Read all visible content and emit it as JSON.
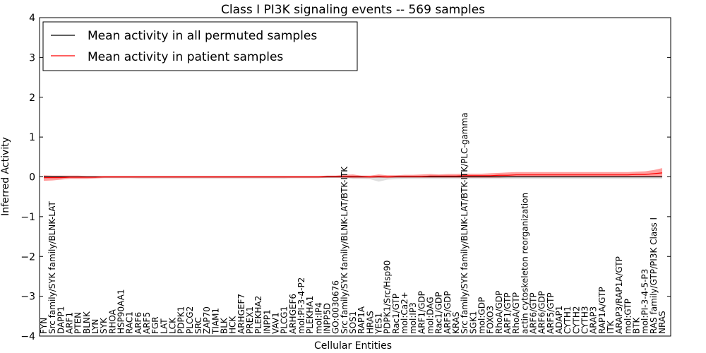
{
  "chart_data": {
    "type": "line",
    "title": "Class I PI3K signaling events -- 569 samples",
    "xlabel": "Cellular Entities",
    "ylabel": "Inferred Activity",
    "ylim": [
      -4,
      4
    ],
    "yticks": [
      -4,
      -3,
      -2,
      -1,
      0,
      1,
      2,
      3,
      4
    ],
    "ytick_labels": [
      "−4",
      "−3",
      "−2",
      "−1",
      "0",
      "1",
      "2",
      "3",
      "4"
    ],
    "grid": false,
    "legend_position": "top-left",
    "categories": [
      "FYN",
      "Src family/SYK family/BLNK-LAT",
      "DAPP1",
      "ARF1",
      "PTEN",
      "BLNK",
      "LYN",
      "SYK",
      "RHOA",
      "HSP90AA1",
      "RAC1",
      "ARF6",
      "ARF5",
      "FGR",
      "LAT",
      "LCK",
      "PDPK1",
      "PLCG2",
      "SRC",
      "ZAP70",
      "TIAM1",
      "BLK",
      "HCK",
      "ARHGEF7",
      "PREX1",
      "PLEKHA2",
      "INPP1",
      "VAV1",
      "PLCG1",
      "ARHGEF6",
      "mol:PI-3-4-P2",
      "PLEKHA1",
      "mol:IP4",
      "INPP5D",
      "GO:0030676",
      "Src family/SYK family/BLNK-LAT/BTK-ITK",
      "SOS1",
      "RAP1A",
      "HRAS",
      "YES1",
      "PDPK1/Src/Hsp90",
      "Rac1/GTP",
      "mol:Ca2+",
      "mol:IP3",
      "ARF1/GDP",
      "mol:DAG",
      "Rac1/GDP",
      "ARF5/GDP",
      "KRAS",
      "Src family/SYK family/BLNK-LAT/BTK-ITK/PLC-gamma",
      "SGK1",
      "mol:GDP",
      "FOXO3",
      "RhoA/GDP",
      "ARF1/GTP",
      "RhoA/GTP",
      "actin cytoskeleton reorganization",
      "ARF6/GTP",
      "ARF6/GDP",
      "ARF5/GTP",
      "ADAP1",
      "CYTH1",
      "CYTH2",
      "CYTH3",
      "ARAP3",
      "RAP1A/GTP",
      "ITK",
      "ARAP3/RAP1A/GTP",
      "mol:GTP",
      "BTK",
      "mol:PI-3-4-5-P3",
      "RAS family/GTP/PI3K Class I",
      "NRAS"
    ],
    "series": [
      {
        "name": "Mean activity in all permuted samples",
        "color": "#000000",
        "values": [
          0,
          0,
          0,
          0,
          0,
          0,
          0,
          0,
          0,
          0,
          0,
          0,
          0,
          0,
          0,
          0,
          0,
          0,
          0,
          0,
          0,
          0,
          0,
          0,
          0,
          0,
          0,
          0,
          0,
          0,
          0,
          0,
          0,
          0,
          0,
          0,
          0,
          0,
          0,
          0,
          0,
          0,
          0,
          0,
          0,
          0,
          0,
          0,
          0,
          0,
          0,
          0,
          0,
          0,
          0,
          0,
          0,
          0,
          0,
          0,
          0,
          0,
          0,
          0,
          0,
          0,
          0,
          0,
          0,
          0,
          0,
          0,
          0
        ],
        "band_upper": [
          0.02,
          0.02,
          0.02,
          0.02,
          0.02,
          0.02,
          0.02,
          0.02,
          0.02,
          0.02,
          0.02,
          0.02,
          0.02,
          0.02,
          0.02,
          0.02,
          0.02,
          0.02,
          0.02,
          0.02,
          0.02,
          0.02,
          0.02,
          0.02,
          0.02,
          0.02,
          0.02,
          0.02,
          0.02,
          0.02,
          0.02,
          0.02,
          0.02,
          0.02,
          0.02,
          0.03,
          0.02,
          0.02,
          0.02,
          0.02,
          0.02,
          0.02,
          0.02,
          0.02,
          0.02,
          0.02,
          0.02,
          0.02,
          0.02,
          0.02,
          0.02,
          0.02,
          0.02,
          0.02,
          0.02,
          0.02,
          0.02,
          0.02,
          0.02,
          0.02,
          0.02,
          0.02,
          0.02,
          0.02,
          0.02,
          0.02,
          0.02,
          0.02,
          0.02,
          0.02,
          0.02,
          0.02,
          0.02
        ],
        "band_lower": [
          -0.04,
          -0.03,
          -0.03,
          -0.03,
          -0.03,
          -0.03,
          -0.03,
          -0.03,
          -0.03,
          -0.03,
          -0.03,
          -0.04,
          -0.04,
          -0.04,
          -0.04,
          -0.04,
          -0.04,
          -0.04,
          -0.04,
          -0.04,
          -0.04,
          -0.04,
          -0.04,
          -0.04,
          -0.04,
          -0.04,
          -0.04,
          -0.04,
          -0.04,
          -0.03,
          -0.03,
          -0.03,
          -0.03,
          -0.03,
          -0.03,
          -0.03,
          -0.05,
          -0.05,
          -0.06,
          -0.12,
          -0.07,
          -0.06,
          -0.05,
          -0.05,
          -0.05,
          -0.05,
          -0.05,
          -0.05,
          -0.05,
          -0.05,
          -0.05,
          -0.05,
          -0.05,
          -0.05,
          -0.05,
          -0.05,
          -0.05,
          -0.05,
          -0.05,
          -0.05,
          -0.05,
          -0.05,
          -0.05,
          -0.05,
          -0.05,
          -0.05,
          -0.05,
          -0.05,
          -0.05,
          -0.05,
          -0.05,
          -0.05,
          -0.05
        ]
      },
      {
        "name": "Mean activity in patient samples",
        "color": "#ff0000",
        "values": [
          -0.02,
          -0.02,
          -0.02,
          -0.01,
          -0.01,
          -0.01,
          -0.01,
          0,
          0,
          0,
          0,
          0,
          0,
          0,
          0,
          0,
          0,
          0,
          0,
          0,
          0,
          0,
          0,
          0,
          0,
          0,
          0,
          0,
          0,
          0,
          0,
          0,
          0,
          0.01,
          0.01,
          0.01,
          0.01,
          0.01,
          0,
          0.01,
          0,
          0.01,
          0.01,
          0.01,
          0.01,
          0.02,
          0.02,
          0.02,
          0.02,
          0.03,
          0.03,
          0.03,
          0.03,
          0.04,
          0.04,
          0.05,
          0.05,
          0.05,
          0.05,
          0.05,
          0.05,
          0.05,
          0.05,
          0.05,
          0.05,
          0.05,
          0.05,
          0.05,
          0.05,
          0.06,
          0.06,
          0.08,
          0.1
        ],
        "band_upper": [
          0.04,
          0.03,
          0.03,
          0.03,
          0.03,
          0.02,
          0.02,
          0.02,
          0.02,
          0.02,
          0.02,
          0.02,
          0.02,
          0.02,
          0.02,
          0.02,
          0.02,
          0.02,
          0.02,
          0.02,
          0.02,
          0.02,
          0.02,
          0.02,
          0.02,
          0.02,
          0.02,
          0.02,
          0.02,
          0.02,
          0.02,
          0.02,
          0.02,
          0.03,
          0.03,
          0.05,
          0.06,
          0.03,
          0.03,
          0.06,
          0.04,
          0.04,
          0.05,
          0.05,
          0.06,
          0.07,
          0.06,
          0.07,
          0.07,
          0.08,
          0.08,
          0.08,
          0.09,
          0.1,
          0.11,
          0.12,
          0.12,
          0.12,
          0.12,
          0.12,
          0.12,
          0.12,
          0.12,
          0.12,
          0.12,
          0.12,
          0.12,
          0.12,
          0.12,
          0.13,
          0.14,
          0.17,
          0.22
        ],
        "band_lower": [
          -0.1,
          -0.09,
          -0.07,
          -0.05,
          -0.05,
          -0.05,
          -0.04,
          -0.03,
          -0.03,
          -0.03,
          -0.03,
          -0.03,
          -0.03,
          -0.03,
          -0.03,
          -0.03,
          -0.03,
          -0.03,
          -0.03,
          -0.03,
          -0.03,
          -0.03,
          -0.03,
          -0.03,
          -0.03,
          -0.03,
          -0.03,
          -0.03,
          -0.03,
          -0.03,
          -0.03,
          -0.03,
          -0.03,
          -0.02,
          -0.02,
          -0.02,
          -0.03,
          -0.03,
          -0.03,
          -0.02,
          -0.03,
          -0.02,
          -0.02,
          -0.02,
          -0.02,
          -0.02,
          -0.02,
          -0.02,
          -0.02,
          -0.02,
          -0.02,
          -0.02,
          -0.02,
          -0.02,
          -0.01,
          -0.01,
          -0.01,
          -0.01,
          -0.01,
          -0.01,
          -0.01,
          -0.01,
          -0.01,
          -0.01,
          -0.01,
          -0.01,
          -0.01,
          -0.01,
          -0.01,
          -0.01,
          -0.01,
          -0.01,
          -0.01
        ]
      }
    ]
  }
}
